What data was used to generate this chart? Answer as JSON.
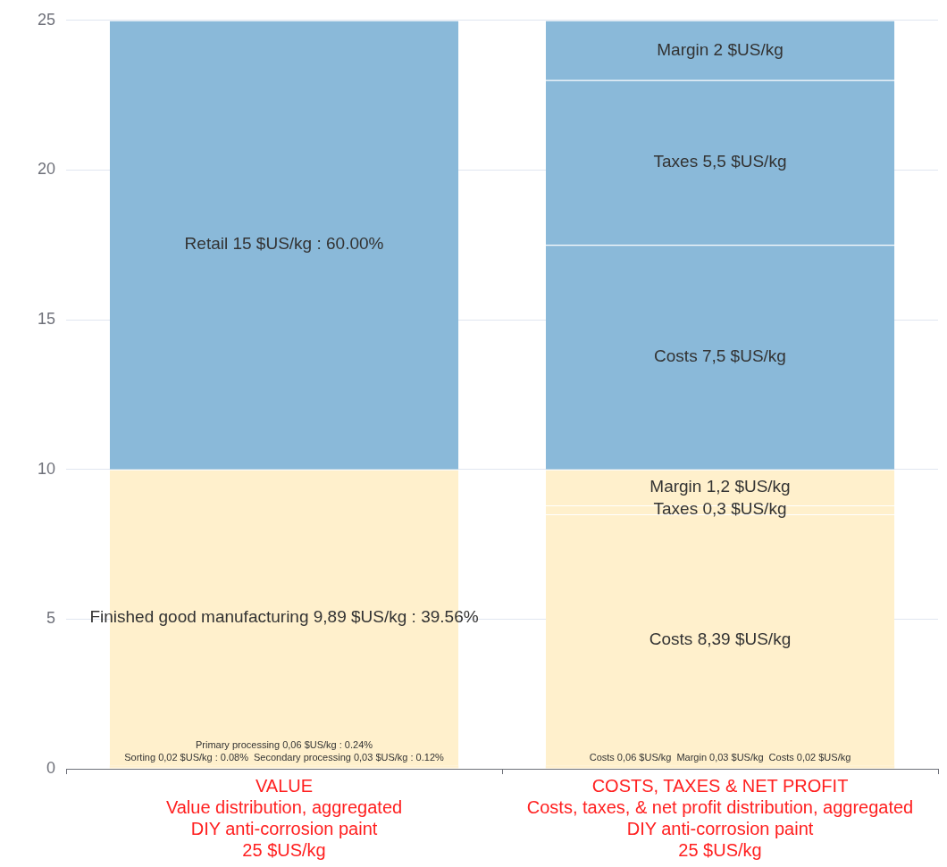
{
  "chart_data": {
    "type": "bar",
    "stacked": true,
    "grid": "y",
    "legend": false,
    "categories": [
      "VALUE\nValue distribution, aggregated\nDIY anti-corrosion paint\n25 $US/kg",
      "COSTS, TAXES & NET PROFIT\nCosts, taxes, & net profit distribution, aggregated\nDIY anti-corrosion paint\n25 $US/kg"
    ],
    "ylim": [
      0,
      25
    ],
    "yticks": [
      0,
      5,
      10,
      15,
      20,
      25
    ],
    "series": [
      {
        "color": "#fff0cc",
        "values": [
          0.02,
          null
        ],
        "value_labels": [
          "Sorting 0,02 $US/kg : 0.08%",
          null
        ]
      },
      {
        "color": "#fff0cc",
        "values": [
          0.03,
          null
        ],
        "value_labels": [
          "Secondary processing 0,03 $US/kg : 0.12%",
          null
        ]
      },
      {
        "color": "#fff0cc",
        "values": [
          0.06,
          null
        ],
        "value_labels": [
          "Primary processing 0,06 $US/kg : 0.24%",
          null
        ]
      },
      {
        "color": "#fff0cc",
        "values": [
          9.89,
          null
        ],
        "value_labels": [
          "Finished good manufacturing 9,89 $US/kg : 39.56%",
          null
        ]
      },
      {
        "color": "#8ab9d9",
        "values": [
          15,
          null
        ],
        "value_labels": [
          "Retail 15 $US/kg : 60.00%",
          null
        ]
      },
      {
        "color": "#fff0cc",
        "values": [
          null,
          0.06
        ],
        "value_labels": [
          null,
          "Costs 0,06 $US/kg"
        ]
      },
      {
        "color": "#fff0cc",
        "values": [
          null,
          0.03
        ],
        "value_labels": [
          null,
          "Margin 0,03 $US/kg"
        ]
      },
      {
        "color": "#fff0cc",
        "values": [
          null,
          0.02
        ],
        "value_labels": [
          null,
          "Costs 0,02 $US/kg"
        ]
      },
      {
        "color": "#fff0cc",
        "values": [
          null,
          8.39
        ],
        "value_labels": [
          null,
          "Costs 8,39 $US/kg"
        ]
      },
      {
        "color": "#fff0cc",
        "values": [
          null,
          0.3
        ],
        "value_labels": [
          null,
          "Taxes 0,3 $US/kg"
        ]
      },
      {
        "color": "#fff0cc",
        "values": [
          null,
          1.2
        ],
        "value_labels": [
          null,
          "Margin 1,2 $US/kg"
        ]
      },
      {
        "color": "#8ab9d9",
        "values": [
          null,
          7.5
        ],
        "value_labels": [
          null,
          "Costs 7,5 $US/kg"
        ]
      },
      {
        "color": "#8ab9d9",
        "values": [
          null,
          5.5
        ],
        "value_labels": [
          null,
          "Taxes 5,5 $US/kg"
        ]
      },
      {
        "color": "#8ab9d9",
        "values": [
          null,
          2
        ],
        "value_labels": [
          null,
          "Margin 2 $US/kg"
        ]
      }
    ]
  }
}
